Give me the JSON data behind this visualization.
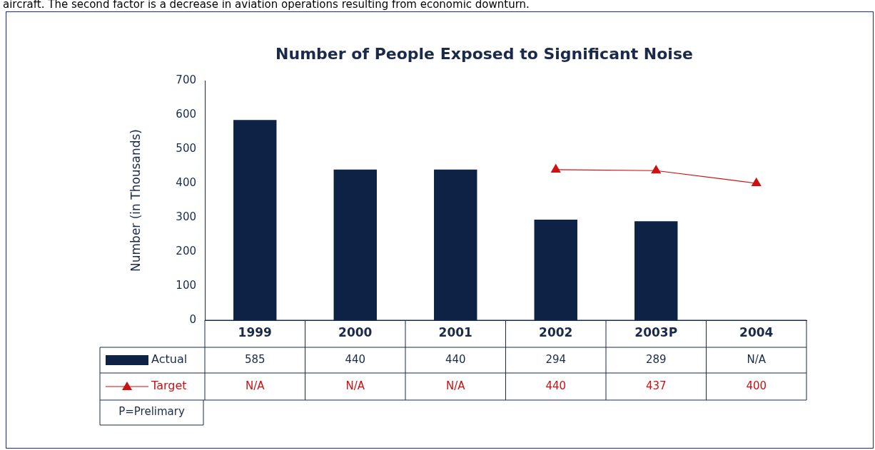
{
  "chart_data": {
    "type": "bar",
    "title": "Number of People Exposed to Significant Noise",
    "ylabel": "Number (in Thousands)",
    "categories": [
      "1999",
      "2000",
      "2001",
      "2002",
      "2003P",
      "2004"
    ],
    "series": [
      {
        "name": "Actual",
        "color": "#0d2244",
        "values": [
          585,
          440,
          440,
          294,
          289,
          null
        ],
        "value_labels": [
          "585",
          "440",
          "440",
          "294",
          "289",
          "N/A"
        ]
      },
      {
        "name": "Target",
        "type": "line",
        "color": "#cc1111",
        "marker": "triangle",
        "values": [
          null,
          null,
          null,
          440,
          437,
          400
        ],
        "value_labels": [
          "N/A",
          "N/A",
          "N/A",
          "440",
          "437",
          "400"
        ]
      }
    ],
    "ylim": [
      0,
      700
    ],
    "yticks": [
      0,
      100,
      200,
      300,
      400,
      500,
      600,
      700
    ],
    "grid": false,
    "legend": "bottom left",
    "annotations": [
      "aircraft. The second factor is a decrease in aviation operations resulting from economic downturn.",
      "P=Prelimary"
    ]
  }
}
